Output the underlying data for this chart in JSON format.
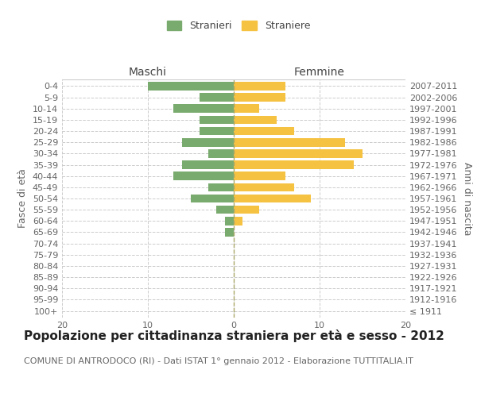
{
  "age_groups": [
    "100+",
    "95-99",
    "90-94",
    "85-89",
    "80-84",
    "75-79",
    "70-74",
    "65-69",
    "60-64",
    "55-59",
    "50-54",
    "45-49",
    "40-44",
    "35-39",
    "30-34",
    "25-29",
    "20-24",
    "15-19",
    "10-14",
    "5-9",
    "0-4"
  ],
  "birth_years": [
    "≤ 1911",
    "1912-1916",
    "1917-1921",
    "1922-1926",
    "1927-1931",
    "1932-1936",
    "1937-1941",
    "1942-1946",
    "1947-1951",
    "1952-1956",
    "1957-1961",
    "1962-1966",
    "1967-1971",
    "1972-1976",
    "1977-1981",
    "1982-1986",
    "1987-1991",
    "1992-1996",
    "1997-2001",
    "2002-2006",
    "2007-2011"
  ],
  "maschi": [
    0,
    0,
    0,
    0,
    0,
    0,
    0,
    1,
    1,
    2,
    5,
    3,
    7,
    6,
    3,
    6,
    4,
    4,
    7,
    4,
    10
  ],
  "femmine": [
    0,
    0,
    0,
    0,
    0,
    0,
    0,
    0,
    1,
    3,
    9,
    7,
    6,
    14,
    15,
    13,
    7,
    5,
    3,
    6,
    6
  ],
  "color_maschi": "#7aab6e",
  "color_femmine": "#f5c242",
  "title": "Popolazione per cittadinanza straniera per età e sesso - 2012",
  "subtitle": "COMUNE DI ANTRODOCO (RI) - Dati ISTAT 1° gennaio 2012 - Elaborazione TUTTITALIA.IT",
  "ylabel_left": "Fasce di età",
  "ylabel_right": "Anni di nascita",
  "xlabel_left": "Maschi",
  "xlabel_top_right": "Femmine",
  "legend_stranieri": "Stranieri",
  "legend_straniere": "Straniere",
  "xlim": 20,
  "bg_color": "#ffffff",
  "grid_color": "#cccccc",
  "title_fontsize": 11,
  "subtitle_fontsize": 8,
  "tick_fontsize": 8,
  "label_fontsize": 9
}
